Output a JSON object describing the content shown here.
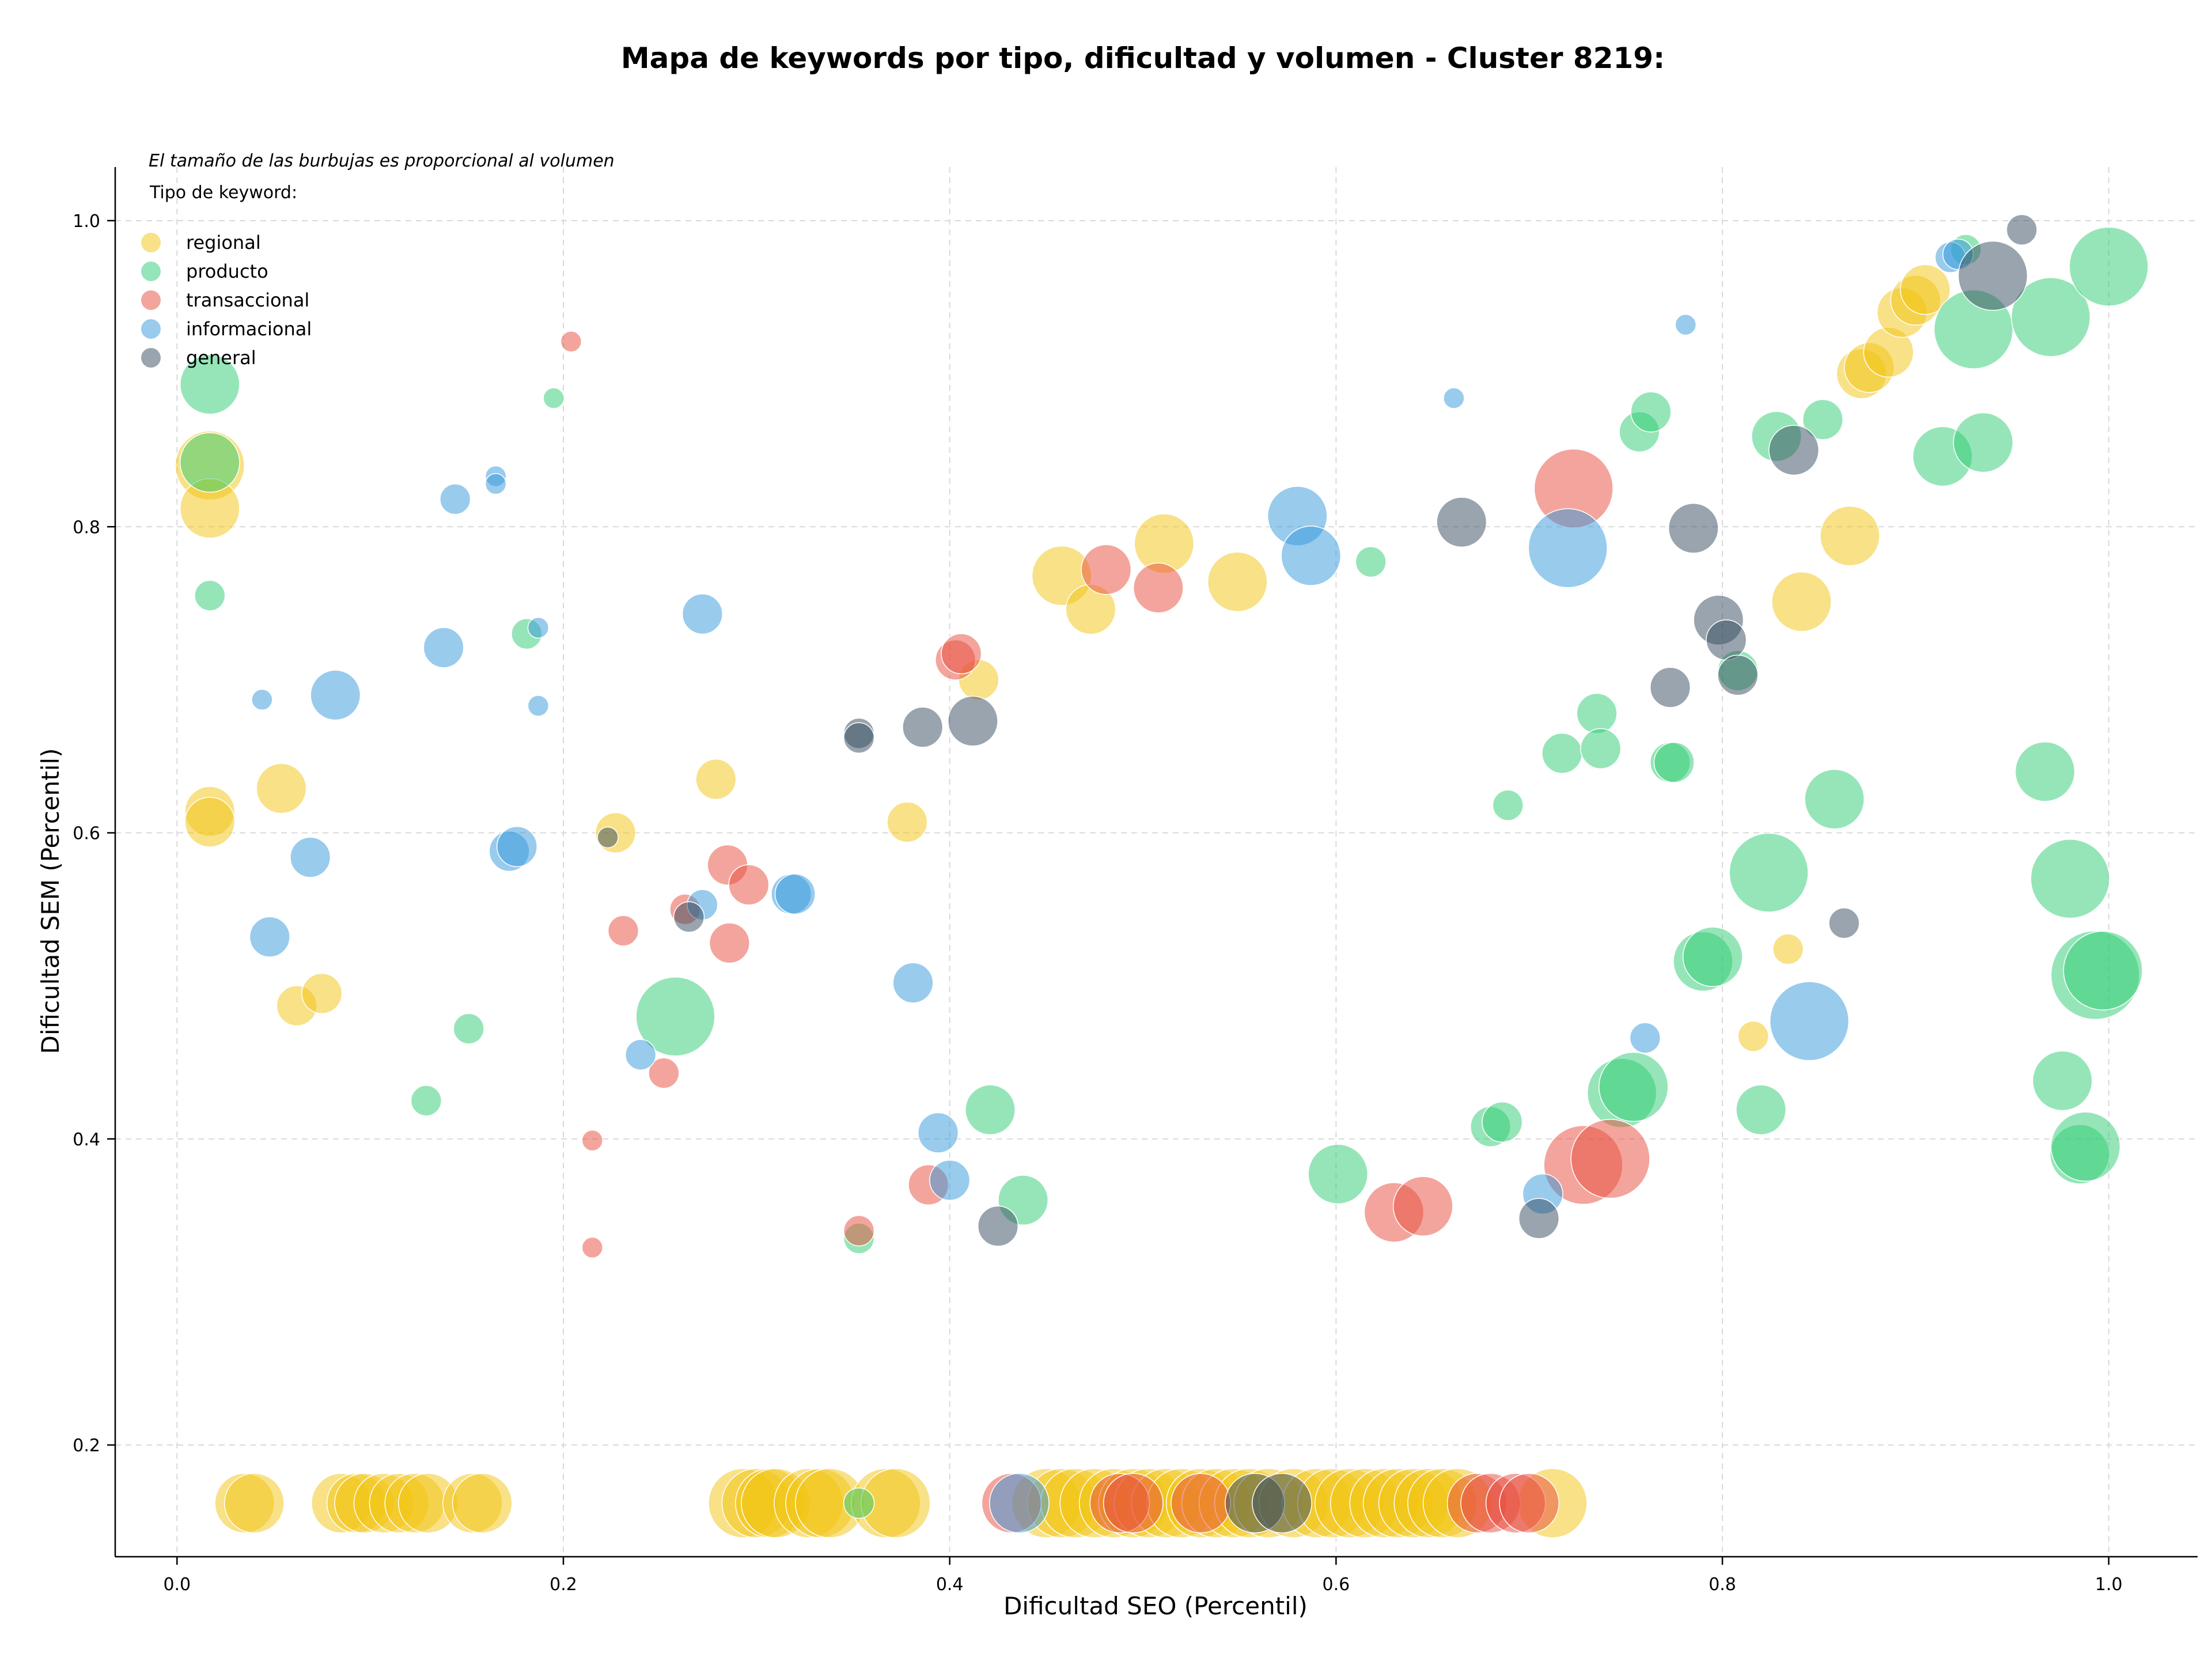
{
  "chart_data": {
    "type": "scatter",
    "title": "Mapa de keywords por tipo, dificultad y volumen - Cluster 8219:",
    "xlabel": "Dificultad SEO (Percentil)",
    "ylabel": "Dificultad SEM (Percentil)",
    "note": "El tamaño de las burbujas es proporcional al volumen",
    "legend_title": "Tipo de keyword:",
    "legend_position": "top-left",
    "xlim": [
      -0.032,
      1.046
    ],
    "ylim": [
      0.127,
      1.035
    ],
    "x_ticks": [
      "0.0",
      "0.2",
      "0.4",
      "0.6",
      "0.8",
      "1.0"
    ],
    "y_ticks": [
      "0.2",
      "0.4",
      "0.6",
      "0.8",
      "1.0"
    ],
    "grid": true,
    "series": [
      {
        "name": "regional",
        "color": "#f1c40f",
        "points": [
          [
            0.017,
            0.84,
            6
          ],
          [
            0.017,
            0.812,
            5
          ],
          [
            0.017,
            0.614,
            4
          ],
          [
            0.017,
            0.607,
            4
          ],
          [
            0.054,
            0.629,
            4
          ],
          [
            0.062,
            0.487,
            3
          ],
          [
            0.075,
            0.495,
            3
          ],
          [
            0.227,
            0.6,
            3
          ],
          [
            0.279,
            0.635,
            3
          ],
          [
            0.378,
            0.607,
            3
          ],
          [
            0.415,
            0.7,
            3
          ],
          [
            0.458,
            0.768,
            5
          ],
          [
            0.473,
            0.746,
            4
          ],
          [
            0.511,
            0.789,
            5
          ],
          [
            0.549,
            0.764,
            5
          ],
          [
            0.834,
            0.524,
            2
          ],
          [
            0.816,
            0.467,
            2
          ],
          [
            0.841,
            0.751,
            5
          ],
          [
            0.866,
            0.794,
            5
          ],
          [
            0.872,
            0.9,
            4
          ],
          [
            0.876,
            0.904,
            4
          ],
          [
            0.886,
            0.914,
            4
          ],
          [
            0.893,
            0.94,
            4
          ],
          [
            0.9,
            0.948,
            4
          ],
          [
            0.905,
            0.955,
            4
          ],
          [
            0.035,
            0.162,
            5
          ],
          [
            0.04,
            0.162,
            5
          ],
          [
            0.085,
            0.162,
            5
          ],
          [
            0.093,
            0.162,
            5
          ],
          [
            0.097,
            0.162,
            5
          ],
          [
            0.107,
            0.162,
            5
          ],
          [
            0.115,
            0.162,
            5
          ],
          [
            0.123,
            0.162,
            5
          ],
          [
            0.13,
            0.162,
            5
          ],
          [
            0.153,
            0.162,
            5
          ],
          [
            0.158,
            0.162,
            5
          ],
          [
            0.293,
            0.162,
            6
          ],
          [
            0.3,
            0.162,
            6
          ],
          [
            0.307,
            0.162,
            6
          ],
          [
            0.31,
            0.162,
            6
          ],
          [
            0.327,
            0.162,
            6
          ],
          [
            0.333,
            0.162,
            6
          ],
          [
            0.338,
            0.162,
            6
          ],
          [
            0.367,
            0.162,
            6
          ],
          [
            0.372,
            0.162,
            6
          ],
          [
            0.45,
            0.162,
            6
          ],
          [
            0.458,
            0.162,
            6
          ],
          [
            0.465,
            0.162,
            6
          ],
          [
            0.475,
            0.162,
            6
          ],
          [
            0.485,
            0.162,
            6
          ],
          [
            0.495,
            0.162,
            6
          ],
          [
            0.503,
            0.162,
            6
          ],
          [
            0.512,
            0.162,
            6
          ],
          [
            0.52,
            0.162,
            6
          ],
          [
            0.53,
            0.162,
            6
          ],
          [
            0.538,
            0.162,
            6
          ],
          [
            0.547,
            0.162,
            6
          ],
          [
            0.555,
            0.162,
            6
          ],
          [
            0.565,
            0.162,
            6
          ],
          [
            0.578,
            0.162,
            6
          ],
          [
            0.59,
            0.162,
            6
          ],
          [
            0.598,
            0.162,
            6
          ],
          [
            0.607,
            0.162,
            6
          ],
          [
            0.615,
            0.162,
            6
          ],
          [
            0.625,
            0.162,
            6
          ],
          [
            0.632,
            0.162,
            6
          ],
          [
            0.64,
            0.162,
            6
          ],
          [
            0.648,
            0.162,
            6
          ],
          [
            0.655,
            0.162,
            6
          ],
          [
            0.663,
            0.162,
            6
          ],
          [
            0.712,
            0.162,
            6
          ]
        ]
      },
      {
        "name": "producto",
        "color": "#2ecc71",
        "points": [
          [
            0.017,
            0.893,
            5
          ],
          [
            0.017,
            0.842,
            5
          ],
          [
            0.017,
            0.755,
            2
          ],
          [
            0.129,
            0.425,
            2
          ],
          [
            0.151,
            0.472,
            2
          ],
          [
            0.181,
            0.73,
            2
          ],
          [
            0.195,
            0.884,
            1
          ],
          [
            0.258,
            0.48,
            7
          ],
          [
            0.353,
            0.335,
            2
          ],
          [
            0.353,
            0.162,
            2
          ],
          [
            0.421,
            0.419,
            4
          ],
          [
            0.438,
            0.36,
            4
          ],
          [
            0.601,
            0.377,
            5
          ],
          [
            0.618,
            0.777,
            2
          ],
          [
            0.689,
            0.618,
            2
          ],
          [
            0.68,
            0.408,
            3
          ],
          [
            0.686,
            0.411,
            3
          ],
          [
            0.717,
            0.652,
            3
          ],
          [
            0.735,
            0.678,
            3
          ],
          [
            0.737,
            0.655,
            3
          ],
          [
            0.748,
            0.43,
            6
          ],
          [
            0.754,
            0.434,
            6
          ],
          [
            0.757,
            0.862,
            3
          ],
          [
            0.763,
            0.875,
            3
          ],
          [
            0.773,
            0.646,
            3
          ],
          [
            0.775,
            0.646,
            3
          ],
          [
            0.79,
            0.516,
            5
          ],
          [
            0.795,
            0.519,
            5
          ],
          [
            0.808,
            0.706,
            3
          ],
          [
            0.82,
            0.419,
            4
          ],
          [
            0.828,
            0.859,
            4
          ],
          [
            0.824,
            0.574,
            7
          ],
          [
            0.852,
            0.87,
            3
          ],
          [
            0.858,
            0.622,
            5
          ],
          [
            0.914,
            0.846,
            5
          ],
          [
            0.926,
            0.981,
            2
          ],
          [
            0.93,
            0.929,
            7
          ],
          [
            0.935,
            0.855,
            5
          ],
          [
            0.967,
            0.64,
            5
          ],
          [
            0.97,
            0.937,
            7
          ],
          [
            0.976,
            0.438,
            5
          ],
          [
            0.98,
            0.57,
            7
          ],
          [
            0.985,
            0.39,
            5
          ],
          [
            0.988,
            0.395,
            6
          ],
          [
            0.993,
            0.507,
            8
          ],
          [
            0.997,
            0.51,
            7
          ],
          [
            1.0,
            0.97,
            7
          ]
        ]
      },
      {
        "name": "transaccional",
        "color": "#e74c3c",
        "points": [
          [
            0.204,
            0.921,
            1
          ],
          [
            0.215,
            0.399,
            1
          ],
          [
            0.215,
            0.329,
            1
          ],
          [
            0.231,
            0.536,
            2
          ],
          [
            0.252,
            0.443,
            2
          ],
          [
            0.263,
            0.55,
            2
          ],
          [
            0.285,
            0.579,
            3
          ],
          [
            0.286,
            0.528,
            3
          ],
          [
            0.296,
            0.566,
            3
          ],
          [
            0.353,
            0.34,
            2
          ],
          [
            0.389,
            0.37,
            3
          ],
          [
            0.403,
            0.713,
            3
          ],
          [
            0.406,
            0.717,
            3
          ],
          [
            0.481,
            0.772,
            4
          ],
          [
            0.508,
            0.76,
            4
          ],
          [
            0.63,
            0.352,
            5
          ],
          [
            0.645,
            0.356,
            5
          ],
          [
            0.723,
            0.825,
            7
          ],
          [
            0.728,
            0.383,
            7
          ],
          [
            0.742,
            0.387,
            7
          ],
          [
            0.432,
            0.162,
            5
          ],
          [
            0.488,
            0.162,
            5
          ],
          [
            0.495,
            0.162,
            5
          ],
          [
            0.53,
            0.162,
            5
          ],
          [
            0.673,
            0.162,
            5
          ],
          [
            0.68,
            0.162,
            5
          ],
          [
            0.693,
            0.162,
            5
          ],
          [
            0.7,
            0.162,
            5
          ]
        ]
      },
      {
        "name": "informacional",
        "color": "#3498db",
        "points": [
          [
            0.044,
            0.687,
            1
          ],
          [
            0.048,
            0.532,
            3
          ],
          [
            0.069,
            0.584,
            3
          ],
          [
            0.082,
            0.69,
            4
          ],
          [
            0.138,
            0.721,
            3
          ],
          [
            0.144,
            0.818,
            2
          ],
          [
            0.165,
            0.833,
            1
          ],
          [
            0.165,
            0.828,
            1
          ],
          [
            0.172,
            0.588,
            3
          ],
          [
            0.176,
            0.591,
            3
          ],
          [
            0.187,
            0.734,
            1
          ],
          [
            0.187,
            0.683,
            1
          ],
          [
            0.24,
            0.455,
            2
          ],
          [
            0.272,
            0.553,
            2
          ],
          [
            0.272,
            0.743,
            3
          ],
          [
            0.318,
            0.56,
            3
          ],
          [
            0.32,
            0.56,
            3
          ],
          [
            0.381,
            0.502,
            3
          ],
          [
            0.394,
            0.404,
            3
          ],
          [
            0.4,
            0.373,
            3
          ],
          [
            0.436,
            0.162,
            5
          ],
          [
            0.58,
            0.807,
            5
          ],
          [
            0.587,
            0.781,
            5
          ],
          [
            0.661,
            0.884,
            1
          ],
          [
            0.707,
            0.364,
            3
          ],
          [
            0.72,
            0.786,
            7
          ],
          [
            0.76,
            0.466,
            2
          ],
          [
            0.781,
            0.932,
            1
          ],
          [
            0.845,
            0.477,
            7
          ],
          [
            0.918,
            0.976,
            2
          ],
          [
            0.922,
            0.978,
            2
          ]
        ]
      },
      {
        "name": "general",
        "color": "#34495e",
        "points": [
          [
            0.223,
            0.597,
            1
          ],
          [
            0.265,
            0.545,
            2
          ],
          [
            0.353,
            0.665,
            2
          ],
          [
            0.353,
            0.662,
            2
          ],
          [
            0.386,
            0.669,
            3
          ],
          [
            0.412,
            0.673,
            4
          ],
          [
            0.425,
            0.343,
            3
          ],
          [
            0.558,
            0.162,
            5
          ],
          [
            0.572,
            0.162,
            5
          ],
          [
            0.665,
            0.803,
            4
          ],
          [
            0.705,
            0.348,
            3
          ],
          [
            0.773,
            0.695,
            3
          ],
          [
            0.785,
            0.799,
            4
          ],
          [
            0.798,
            0.739,
            4
          ],
          [
            0.802,
            0.726,
            3
          ],
          [
            0.808,
            0.703,
            3
          ],
          [
            0.837,
            0.85,
            4
          ],
          [
            0.863,
            0.541,
            2
          ],
          [
            0.94,
            0.964,
            6
          ],
          [
            0.955,
            0.994,
            2
          ]
        ]
      }
    ]
  }
}
